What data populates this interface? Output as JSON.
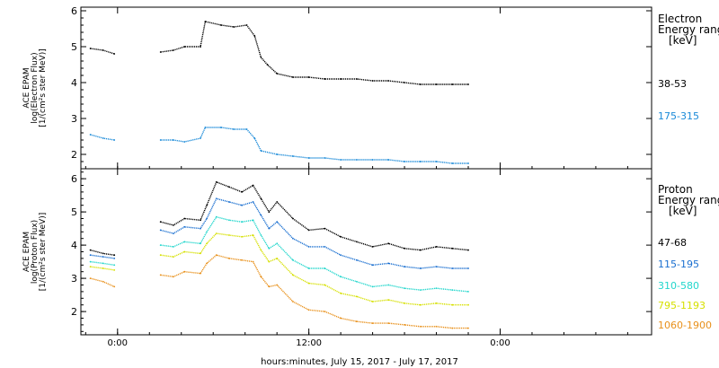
{
  "chart_data": [
    {
      "type": "line",
      "name": "electron-panel",
      "ylabel_lines": [
        "ACE EPAM",
        "log(Electron Flux)",
        "[1/(cm²s ster MeV)]"
      ],
      "ylim": [
        1.6,
        6.1
      ],
      "yticks": [
        "6",
        "5",
        "4",
        "3",
        "2"
      ],
      "legend_title": [
        "Electron",
        "Energy range",
        "[keV]"
      ],
      "series": [
        {
          "name": "38-53",
          "color": "#000000",
          "values": [
            [
              -1.7,
              4.95
            ],
            [
              -0.9,
              4.9
            ],
            [
              -0.2,
              4.8
            ],
            [
              2.7,
              4.85
            ],
            [
              3.5,
              4.9
            ],
            [
              4.2,
              5.0
            ],
            [
              5.2,
              5.0
            ],
            [
              5.5,
              5.7
            ],
            [
              6.5,
              5.6
            ],
            [
              7.3,
              5.55
            ],
            [
              8.1,
              5.6
            ],
            [
              8.6,
              5.3
            ],
            [
              9.0,
              4.7
            ],
            [
              9.4,
              4.5
            ],
            [
              10.0,
              4.25
            ],
            [
              11.0,
              4.15
            ],
            [
              12.0,
              4.15
            ],
            [
              13.0,
              4.1
            ],
            [
              14.0,
              4.1
            ],
            [
              15.0,
              4.1
            ],
            [
              16.0,
              4.05
            ],
            [
              17.0,
              4.05
            ],
            [
              18.0,
              4.0
            ],
            [
              19.0,
              3.95
            ],
            [
              20.0,
              3.95
            ],
            [
              21.0,
              3.95
            ],
            [
              22.0,
              3.95
            ]
          ]
        },
        {
          "name": "175-315",
          "color": "#1a8ad8",
          "values": [
            [
              -1.7,
              2.55
            ],
            [
              -0.9,
              2.45
            ],
            [
              -0.2,
              2.4
            ],
            [
              2.7,
              2.4
            ],
            [
              3.5,
              2.4
            ],
            [
              4.2,
              2.35
            ],
            [
              5.2,
              2.45
            ],
            [
              5.5,
              2.75
            ],
            [
              6.5,
              2.75
            ],
            [
              7.3,
              2.7
            ],
            [
              8.1,
              2.7
            ],
            [
              8.6,
              2.45
            ],
            [
              9.0,
              2.1
            ],
            [
              10.0,
              2.0
            ],
            [
              11.0,
              1.95
            ],
            [
              12.0,
              1.9
            ],
            [
              13.0,
              1.9
            ],
            [
              14.0,
              1.85
            ],
            [
              15.0,
              1.85
            ],
            [
              16.0,
              1.85
            ],
            [
              17.0,
              1.85
            ],
            [
              18.0,
              1.8
            ],
            [
              19.0,
              1.8
            ],
            [
              20.0,
              1.8
            ],
            [
              21.0,
              1.75
            ],
            [
              22.0,
              1.75
            ]
          ]
        }
      ]
    },
    {
      "type": "line",
      "name": "proton-panel",
      "ylabel_lines": [
        "ACE EPAM",
        "log(Proton Flux)",
        "[1/(cm²s ster MeV)]"
      ],
      "ylim": [
        1.3,
        6.3
      ],
      "yticks": [
        "6",
        "5",
        "4",
        "3",
        "2"
      ],
      "legend_title": [
        "Proton",
        "Energy range",
        "[keV]"
      ],
      "series": [
        {
          "name": "47-68",
          "color": "#000000",
          "values": [
            [
              -1.7,
              3.85
            ],
            [
              -0.9,
              3.75
            ],
            [
              -0.2,
              3.7
            ],
            [
              2.7,
              4.7
            ],
            [
              3.5,
              4.6
            ],
            [
              4.2,
              4.8
            ],
            [
              5.2,
              4.75
            ],
            [
              5.6,
              5.2
            ],
            [
              6.2,
              5.9
            ],
            [
              7.0,
              5.75
            ],
            [
              7.8,
              5.6
            ],
            [
              8.5,
              5.8
            ],
            [
              9.0,
              5.4
            ],
            [
              9.5,
              5.0
            ],
            [
              10.0,
              5.3
            ],
            [
              11.0,
              4.8
            ],
            [
              12.0,
              4.45
            ],
            [
              13.0,
              4.5
            ],
            [
              14.0,
              4.25
            ],
            [
              15.0,
              4.1
            ],
            [
              16.0,
              3.95
            ],
            [
              17.0,
              4.05
            ],
            [
              18.0,
              3.9
            ],
            [
              19.0,
              3.85
            ],
            [
              20.0,
              3.95
            ],
            [
              21.0,
              3.9
            ],
            [
              22.0,
              3.85
            ]
          ]
        },
        {
          "name": "115-195",
          "color": "#1a6fd0",
          "values": [
            [
              -1.7,
              3.7
            ],
            [
              -0.9,
              3.65
            ],
            [
              -0.2,
              3.6
            ],
            [
              2.7,
              4.45
            ],
            [
              3.5,
              4.35
            ],
            [
              4.2,
              4.55
            ],
            [
              5.2,
              4.5
            ],
            [
              5.6,
              4.8
            ],
            [
              6.2,
              5.4
            ],
            [
              7.0,
              5.3
            ],
            [
              7.8,
              5.2
            ],
            [
              8.5,
              5.3
            ],
            [
              9.0,
              4.9
            ],
            [
              9.5,
              4.5
            ],
            [
              10.0,
              4.7
            ],
            [
              11.0,
              4.2
            ],
            [
              12.0,
              3.95
            ],
            [
              13.0,
              3.95
            ],
            [
              14.0,
              3.7
            ],
            [
              15.0,
              3.55
            ],
            [
              16.0,
              3.4
            ],
            [
              17.0,
              3.45
            ],
            [
              18.0,
              3.35
            ],
            [
              19.0,
              3.3
            ],
            [
              20.0,
              3.35
            ],
            [
              21.0,
              3.3
            ],
            [
              22.0,
              3.3
            ]
          ]
        },
        {
          "name": "310-580",
          "color": "#22d6cc",
          "values": [
            [
              -1.7,
              3.5
            ],
            [
              -0.9,
              3.45
            ],
            [
              -0.2,
              3.4
            ],
            [
              2.7,
              4.0
            ],
            [
              3.5,
              3.95
            ],
            [
              4.2,
              4.1
            ],
            [
              5.2,
              4.05
            ],
            [
              5.6,
              4.4
            ],
            [
              6.2,
              4.85
            ],
            [
              7.0,
              4.75
            ],
            [
              7.8,
              4.7
            ],
            [
              8.5,
              4.75
            ],
            [
              9.0,
              4.3
            ],
            [
              9.5,
              3.9
            ],
            [
              10.0,
              4.05
            ],
            [
              11.0,
              3.55
            ],
            [
              12.0,
              3.3
            ],
            [
              13.0,
              3.3
            ],
            [
              14.0,
              3.05
            ],
            [
              15.0,
              2.9
            ],
            [
              16.0,
              2.75
            ],
            [
              17.0,
              2.8
            ],
            [
              18.0,
              2.7
            ],
            [
              19.0,
              2.65
            ],
            [
              20.0,
              2.7
            ],
            [
              21.0,
              2.65
            ],
            [
              22.0,
              2.6
            ]
          ]
        },
        {
          "name": "795-1193",
          "color": "#d6e000",
          "values": [
            [
              -1.7,
              3.35
            ],
            [
              -0.9,
              3.3
            ],
            [
              -0.2,
              3.25
            ],
            [
              2.7,
              3.7
            ],
            [
              3.5,
              3.65
            ],
            [
              4.2,
              3.8
            ],
            [
              5.2,
              3.75
            ],
            [
              5.6,
              4.05
            ],
            [
              6.2,
              4.35
            ],
            [
              7.0,
              4.3
            ],
            [
              7.8,
              4.25
            ],
            [
              8.5,
              4.3
            ],
            [
              9.0,
              3.85
            ],
            [
              9.5,
              3.5
            ],
            [
              10.0,
              3.6
            ],
            [
              11.0,
              3.1
            ],
            [
              12.0,
              2.85
            ],
            [
              13.0,
              2.8
            ],
            [
              14.0,
              2.55
            ],
            [
              15.0,
              2.45
            ],
            [
              16.0,
              2.3
            ],
            [
              17.0,
              2.35
            ],
            [
              18.0,
              2.25
            ],
            [
              19.0,
              2.2
            ],
            [
              20.0,
              2.25
            ],
            [
              21.0,
              2.2
            ],
            [
              22.0,
              2.2
            ]
          ]
        },
        {
          "name": "1060-1900",
          "color": "#e8901a",
          "values": [
            [
              -1.7,
              3.0
            ],
            [
              -0.9,
              2.9
            ],
            [
              -0.2,
              2.75
            ],
            [
              2.7,
              3.1
            ],
            [
              3.5,
              3.05
            ],
            [
              4.2,
              3.2
            ],
            [
              5.2,
              3.15
            ],
            [
              5.6,
              3.45
            ],
            [
              6.2,
              3.7
            ],
            [
              7.0,
              3.6
            ],
            [
              7.8,
              3.55
            ],
            [
              8.5,
              3.5
            ],
            [
              9.0,
              3.05
            ],
            [
              9.5,
              2.75
            ],
            [
              10.0,
              2.8
            ],
            [
              11.0,
              2.3
            ],
            [
              12.0,
              2.05
            ],
            [
              13.0,
              2.0
            ],
            [
              14.0,
              1.8
            ],
            [
              15.0,
              1.7
            ],
            [
              16.0,
              1.65
            ],
            [
              17.0,
              1.65
            ],
            [
              18.0,
              1.6
            ],
            [
              19.0,
              1.55
            ],
            [
              20.0,
              1.55
            ],
            [
              21.0,
              1.5
            ],
            [
              22.0,
              1.5
            ]
          ]
        }
      ]
    }
  ],
  "xaxis": {
    "label": "hours:minutes, July 15, 2017 - July 17, 2017",
    "ticks": [
      {
        "hour": 0,
        "label": "0:00"
      },
      {
        "hour": 12,
        "label": "12:00"
      },
      {
        "hour": 24,
        "label": "0:00"
      }
    ],
    "xlim": [
      -2.3,
      33.5
    ]
  },
  "colors": {
    "axis": "#000000",
    "background": "#ffffff"
  }
}
